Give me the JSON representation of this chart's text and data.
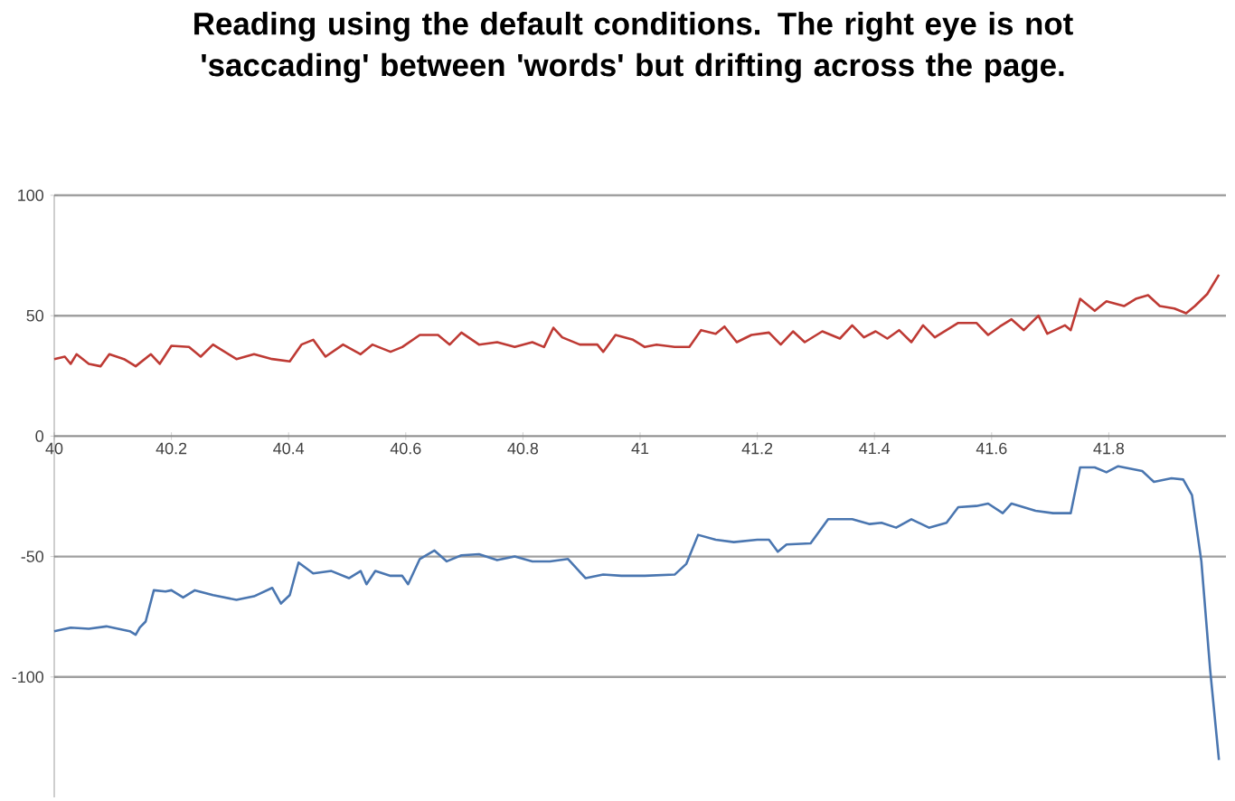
{
  "chart_data": {
    "type": "line",
    "title": "Reading using the default conditions. The right eye is not 'saccading' between 'words' but drifting across the page.",
    "xlim": [
      40,
      42
    ],
    "ylim": [
      -150,
      100
    ],
    "xticks": [
      40,
      40.2,
      40.4,
      40.6,
      40.8,
      41,
      41.2,
      41.4,
      41.6,
      41.8
    ],
    "yticks": [
      -100,
      -50,
      0,
      50,
      100
    ],
    "grid": "y",
    "series": [
      {
        "color": "#be3a34",
        "x": [
          40.0,
          40.018,
          40.028,
          40.038,
          40.059,
          40.079,
          40.094,
          40.119,
          40.139,
          40.165,
          40.18,
          40.2,
          40.23,
          40.25,
          40.271,
          40.291,
          40.311,
          40.341,
          40.372,
          40.402,
          40.422,
          40.442,
          40.463,
          40.493,
          40.523,
          40.543,
          40.574,
          40.594,
          40.624,
          40.655,
          40.675,
          40.695,
          40.725,
          40.756,
          40.786,
          40.816,
          40.836,
          40.852,
          40.867,
          40.897,
          40.927,
          40.937,
          40.958,
          40.988,
          41.008,
          41.028,
          41.059,
          41.084,
          41.104,
          41.129,
          41.144,
          41.165,
          41.19,
          41.22,
          41.24,
          41.261,
          41.281,
          41.311,
          41.341,
          41.362,
          41.382,
          41.402,
          41.422,
          41.442,
          41.463,
          41.483,
          41.503,
          41.523,
          41.543,
          41.574,
          41.594,
          41.614,
          41.634,
          41.655,
          41.68,
          41.695,
          41.725,
          41.735,
          41.751,
          41.776,
          41.796,
          41.826,
          41.846,
          41.867,
          41.887,
          41.912,
          41.932,
          41.947,
          41.968,
          41.988
        ],
        "values": [
          32,
          33,
          30,
          34,
          30,
          29,
          34,
          32,
          29,
          34,
          30,
          37.5,
          37,
          33,
          38,
          35,
          32,
          34,
          32,
          31,
          38,
          40,
          33,
          38,
          34,
          38,
          35,
          37,
          42,
          42,
          38,
          43,
          38,
          39,
          37,
          39,
          37,
          45,
          41,
          38,
          38,
          35,
          42,
          40,
          37,
          38,
          37,
          37,
          44,
          42.5,
          45.5,
          39,
          42,
          43,
          38,
          43.5,
          39,
          43.5,
          40.5,
          46,
          41,
          43.5,
          40.5,
          44,
          39,
          46,
          41,
          44,
          47,
          47,
          42,
          45.5,
          48.5,
          44,
          50,
          42.5,
          46,
          44,
          57,
          52,
          56,
          54,
          57,
          58.5,
          54,
          53,
          51,
          54,
          59,
          67
        ]
      },
      {
        "color": "#4a76b0",
        "x": [
          40.0,
          40.028,
          40.059,
          40.089,
          40.129,
          40.139,
          40.146,
          40.156,
          40.17,
          40.19,
          40.2,
          40.22,
          40.24,
          40.271,
          40.311,
          40.341,
          40.372,
          40.387,
          40.402,
          40.417,
          40.442,
          40.473,
          40.503,
          40.523,
          40.533,
          40.548,
          40.574,
          40.594,
          40.604,
          40.624,
          40.649,
          40.67,
          40.695,
          40.725,
          40.756,
          40.786,
          40.816,
          40.846,
          40.877,
          40.907,
          40.937,
          40.968,
          40.988,
          41.008,
          41.059,
          41.079,
          41.099,
          41.129,
          41.16,
          41.2,
          41.22,
          41.235,
          41.25,
          41.291,
          41.321,
          41.362,
          41.392,
          41.412,
          41.437,
          41.463,
          41.493,
          41.523,
          41.543,
          41.574,
          41.594,
          41.619,
          41.634,
          41.675,
          41.705,
          41.735,
          41.751,
          41.776,
          41.796,
          41.816,
          41.857,
          41.877,
          41.907,
          41.927,
          41.942,
          41.958,
          41.973,
          41.988
        ],
        "values": [
          -81,
          -79.5,
          -80,
          -79,
          -81,
          -82.5,
          -79.5,
          -77,
          -64,
          -64.5,
          -64,
          -67,
          -64,
          -66,
          -68,
          -66.5,
          -63,
          -69.5,
          -66,
          -52.5,
          -57,
          -56,
          -59,
          -56,
          -61.5,
          -56,
          -58,
          -58,
          -61.5,
          -51,
          -47.5,
          -52,
          -49.5,
          -49,
          -51.5,
          -50,
          -52,
          -52,
          -51,
          -59,
          -57.5,
          -58,
          -58,
          -58,
          -57.5,
          -53,
          -41,
          -43,
          -44,
          -43,
          -43,
          -48,
          -45,
          -44.5,
          -34.5,
          -34.5,
          -36.5,
          -36,
          -38,
          -34.5,
          -38,
          -36,
          -29.5,
          -29,
          -28,
          -32,
          -28,
          -31,
          -32,
          -32,
          -13,
          -13,
          -15,
          -12.5,
          -14.5,
          -19,
          -17.5,
          -18,
          -24.5,
          -52,
          -97,
          -134.5
        ]
      }
    ]
  }
}
